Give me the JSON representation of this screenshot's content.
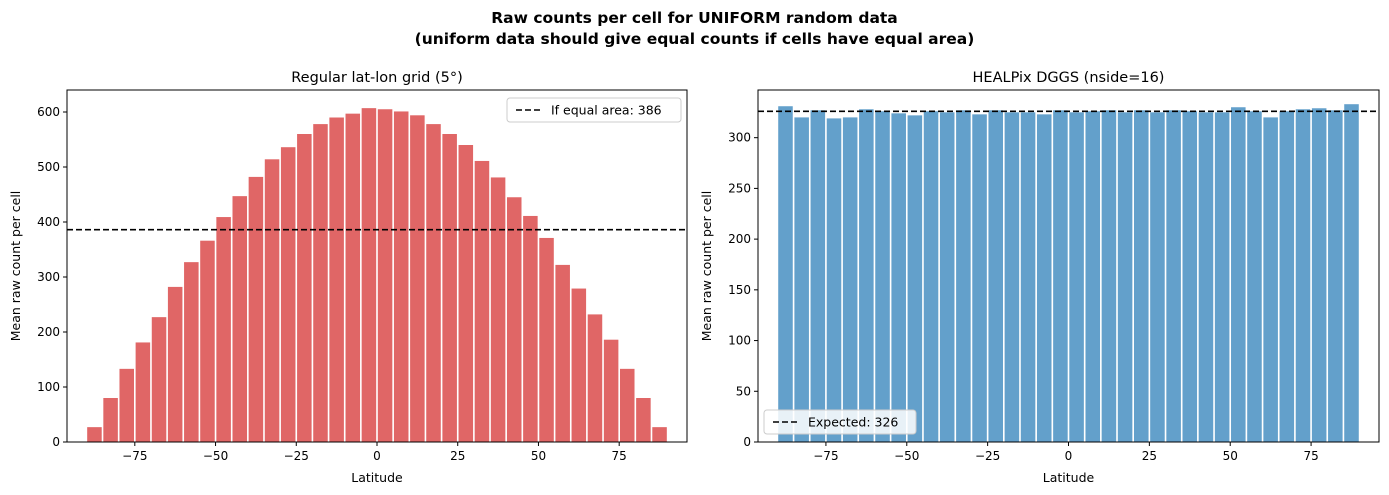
{
  "figure": {
    "title_line1": "Raw counts per cell for UNIFORM random data",
    "title_line2": "(uniform data should give equal counts if cells have equal area)"
  },
  "chart_data": [
    {
      "type": "bar",
      "title": "Regular lat-lon grid (5°)",
      "xlabel": "Latitude",
      "ylabel": "Mean raw count per cell",
      "bar_color": "#e06666",
      "x": [
        -87.5,
        -82.5,
        -77.5,
        -72.5,
        -67.5,
        -62.5,
        -57.5,
        -52.5,
        -47.5,
        -42.5,
        -37.5,
        -32.5,
        -27.5,
        -22.5,
        -17.5,
        -12.5,
        -7.5,
        -2.5,
        2.5,
        7.5,
        12.5,
        17.5,
        22.5,
        27.5,
        32.5,
        37.5,
        42.5,
        47.5,
        52.5,
        57.5,
        62.5,
        67.5,
        72.5,
        77.5,
        82.5,
        87.5
      ],
      "values": [
        27,
        80,
        133,
        181,
        227,
        282,
        327,
        366,
        409,
        447,
        482,
        514,
        536,
        560,
        578,
        590,
        597,
        607,
        605,
        601,
        594,
        578,
        560,
        540,
        511,
        481,
        445,
        411,
        371,
        322,
        279,
        232,
        186,
        133,
        80,
        27
      ],
      "bar_width": 4.5,
      "xlim": [
        -96,
        96
      ],
      "ylim": [
        0,
        640
      ],
      "xticks": [
        -75,
        -50,
        -25,
        0,
        25,
        50,
        75
      ],
      "xtick_labels": [
        "−75",
        "−50",
        "−25",
        "0",
        "25",
        "50",
        "75"
      ],
      "yticks": [
        0,
        100,
        200,
        300,
        400,
        500,
        600
      ],
      "ytick_labels": [
        "0",
        "100",
        "200",
        "300",
        "400",
        "500",
        "600"
      ],
      "reference_line": {
        "y": 386,
        "style": "dashed",
        "color": "#000000"
      },
      "legend": {
        "label": "If equal area: 386",
        "position": "top-right"
      }
    },
    {
      "type": "bar",
      "title": "HEALPix DGGS (nside=16)",
      "xlabel": "Latitude",
      "ylabel": "Mean raw count per cell",
      "bar_color": "#63a0cb",
      "x": [
        -87.5,
        -82.5,
        -77.5,
        -72.5,
        -67.5,
        -62.5,
        -57.5,
        -52.5,
        -47.5,
        -42.5,
        -37.5,
        -32.5,
        -27.5,
        -22.5,
        -17.5,
        -12.5,
        -7.5,
        -2.5,
        2.5,
        7.5,
        12.5,
        17.5,
        22.5,
        27.5,
        32.5,
        37.5,
        42.5,
        47.5,
        52.5,
        57.5,
        62.5,
        67.5,
        72.5,
        77.5,
        82.5,
        87.5
      ],
      "values": [
        331,
        320,
        327,
        319,
        320,
        328,
        326,
        324,
        322,
        326,
        325,
        327,
        323,
        327,
        325,
        325,
        323,
        327,
        325,
        326,
        327,
        325,
        327,
        325,
        327,
        326,
        325,
        325,
        330,
        326,
        320,
        326,
        328,
        329,
        327,
        333
      ],
      "bar_width": 4.5,
      "xlim": [
        -96,
        96
      ],
      "ylim": [
        0,
        347
      ],
      "xticks": [
        -75,
        -50,
        -25,
        0,
        25,
        50,
        75
      ],
      "xtick_labels": [
        "−75",
        "−50",
        "−25",
        "0",
        "25",
        "50",
        "75"
      ],
      "yticks": [
        0,
        50,
        100,
        150,
        200,
        250,
        300
      ],
      "ytick_labels": [
        "0",
        "50",
        "100",
        "150",
        "200",
        "250",
        "300"
      ],
      "reference_line": {
        "y": 326,
        "style": "dashed",
        "color": "#000000"
      },
      "legend": {
        "label": "Expected: 326",
        "position": "bottom-left"
      }
    }
  ]
}
